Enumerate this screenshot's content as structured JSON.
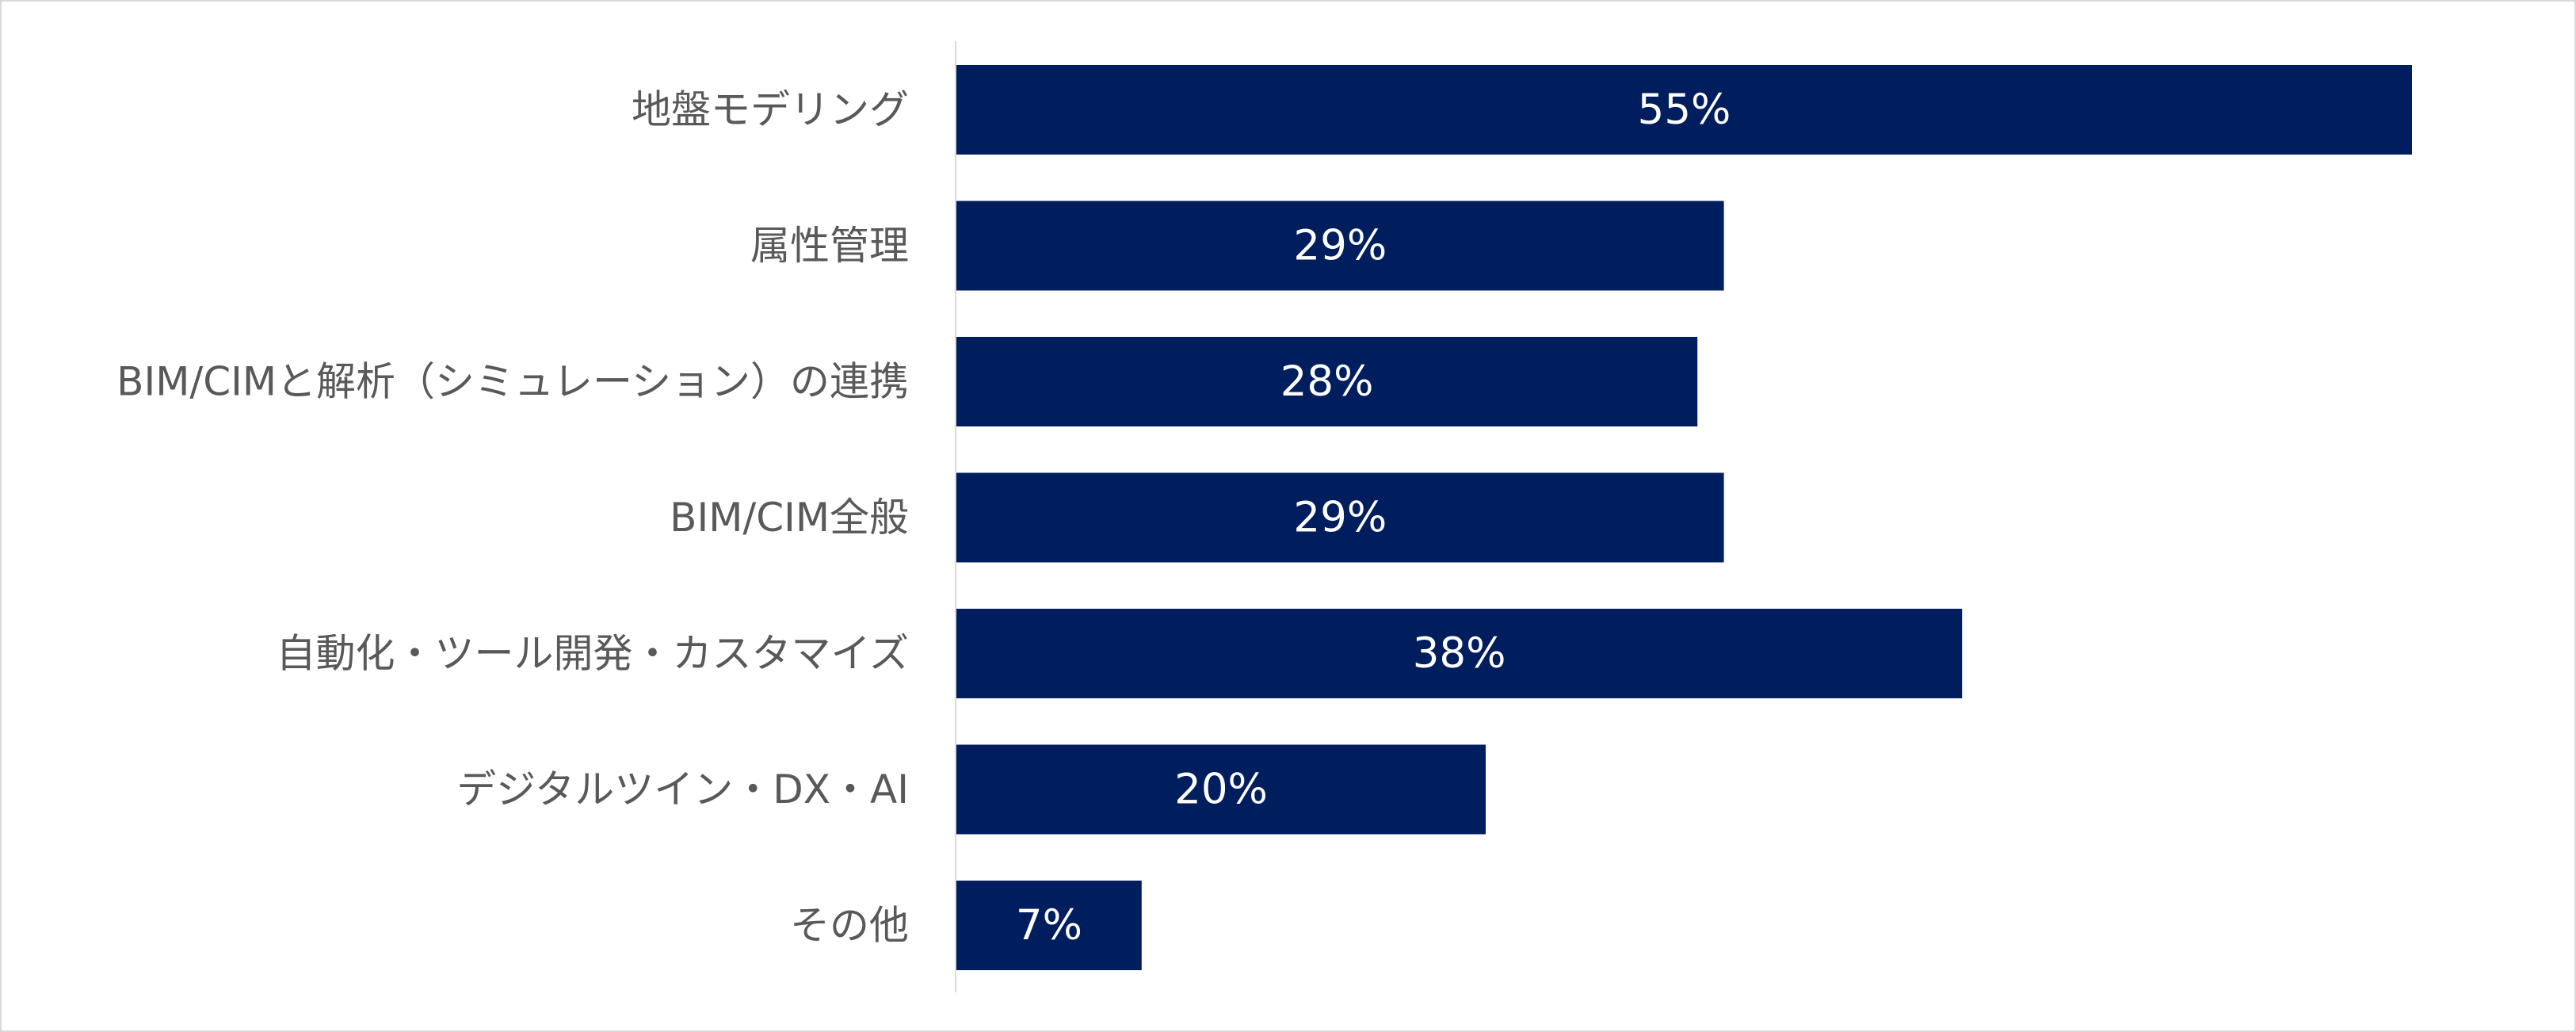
{
  "chart_data": {
    "type": "bar",
    "orientation": "horizontal",
    "categories": [
      "地盤モデリング",
      "属性管理",
      "BIM/CIMと解析（シミュレーション）の連携",
      "BIM/CIM全般",
      "自動化・ツール開発・カスタマイズ",
      "デジタルツイン・DX・AI",
      "その他"
    ],
    "values": [
      55,
      29,
      28,
      29,
      38,
      20,
      7
    ],
    "value_labels": [
      "55%",
      "29%",
      "28%",
      "29%",
      "38%",
      "20%",
      "7%"
    ],
    "unit": "%",
    "xlim": [
      0,
      60
    ],
    "grid": false,
    "legend": "none",
    "title": "",
    "xlabel": "",
    "ylabel": "",
    "colors": {
      "bar": "#001e5e",
      "axis": "#d9d9d9",
      "label_text": "#595959",
      "value_text": "#ffffff",
      "frame": "#d9d9d9"
    }
  }
}
